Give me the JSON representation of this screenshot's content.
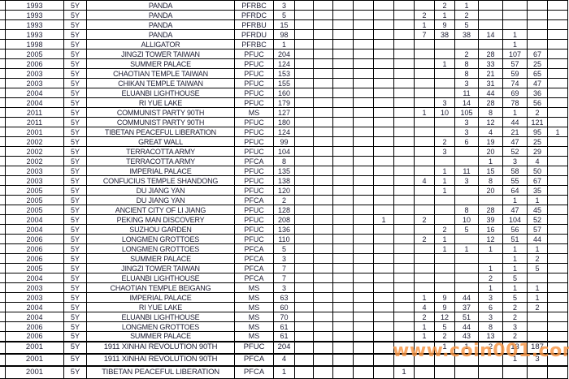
{
  "watermark": "www.coin001.com",
  "colors": {
    "background": "#ffffff",
    "grid_border": "#000000",
    "text": "#1d1d33",
    "watermark": "#f79443"
  },
  "table": {
    "description_visible_columns": [
      "year",
      "denomination",
      "subject_name",
      "finish_code",
      "total_count",
      "13 unlabeled count columns (header cut off above screenshot)"
    ],
    "rows": [
      {
        "year": "1993",
        "denom": "5Y",
        "name": "PANDA",
        "code": "PFRBC",
        "total": "3",
        "grades": [
          "",
          "",
          "",
          "",
          "",
          "",
          "",
          "2",
          "1",
          "",
          "",
          "",
          ""
        ]
      },
      {
        "year": "1993",
        "denom": "5Y",
        "name": "PANDA",
        "code": "PFRDC",
        "total": "5",
        "grades": [
          "",
          "",
          "",
          "",
          "",
          "",
          "2",
          "1",
          "2",
          "",
          "",
          "",
          ""
        ]
      },
      {
        "year": "1993",
        "denom": "5Y",
        "name": "PANDA",
        "code": "PFRBU",
        "total": "15",
        "grades": [
          "",
          "",
          "",
          "",
          "",
          "",
          "1",
          "9",
          "5",
          "",
          "",
          "",
          ""
        ]
      },
      {
        "year": "1993",
        "denom": "5Y",
        "name": "PANDA",
        "code": "PFRDU",
        "total": "98",
        "grades": [
          "",
          "",
          "",
          "",
          "",
          "",
          "7",
          "38",
          "38",
          "14",
          "1",
          "",
          ""
        ]
      },
      {
        "year": "1998",
        "denom": "5Y",
        "name": "ALLIGATOR",
        "code": "PFRBC",
        "total": "1",
        "grades": [
          "",
          "",
          "",
          "",
          "",
          "",
          "",
          "",
          "",
          "",
          "1",
          "",
          ""
        ]
      },
      {
        "year": "2005",
        "denom": "5Y",
        "name": "JINGZI TOWER TAIWAN",
        "code": "PFUC",
        "total": "204",
        "grades": [
          "",
          "",
          "",
          "",
          "",
          "",
          "",
          "",
          "2",
          "28",
          "107",
          "67",
          ""
        ]
      },
      {
        "year": "2006",
        "denom": "5Y",
        "name": "SUMMER PALACE",
        "code": "PFUC",
        "total": "124",
        "grades": [
          "",
          "",
          "",
          "",
          "",
          "",
          "",
          "1",
          "8",
          "33",
          "57",
          "25",
          ""
        ]
      },
      {
        "year": "2003",
        "denom": "5Y",
        "name": "CHAOTIAN TEMPLE TAIWAN",
        "code": "PFUC",
        "total": "153",
        "grades": [
          "",
          "",
          "",
          "",
          "",
          "",
          "",
          "",
          "8",
          "21",
          "59",
          "65",
          ""
        ]
      },
      {
        "year": "2003",
        "denom": "5Y",
        "name": "CHIKAN TEMPLE TAIWAN",
        "code": "PFUC",
        "total": "155",
        "grades": [
          "",
          "",
          "",
          "",
          "",
          "",
          "",
          "",
          "3",
          "31",
          "74",
          "47",
          ""
        ]
      },
      {
        "year": "2004",
        "denom": "5Y",
        "name": "ELUANBI LIGHTHOUSE",
        "code": "PFUC",
        "total": "160",
        "grades": [
          "",
          "",
          "",
          "",
          "",
          "",
          "",
          "",
          "11",
          "44",
          "69",
          "36",
          ""
        ]
      },
      {
        "year": "2004",
        "denom": "5Y",
        "name": "RI YUE LAKE",
        "code": "PFUC",
        "total": "179",
        "grades": [
          "",
          "",
          "",
          "",
          "",
          "",
          "",
          "3",
          "14",
          "28",
          "78",
          "56",
          ""
        ]
      },
      {
        "year": "2011",
        "denom": "5Y",
        "name": "COMMUNIST PARTY 90TH",
        "code": "MS",
        "total": "127",
        "grades": [
          "",
          "",
          "",
          "",
          "",
          "",
          "1",
          "10",
          "105",
          "8",
          "1",
          "2",
          ""
        ]
      },
      {
        "year": "2011",
        "denom": "5Y",
        "name": "COMMUNIST PARTY 90TH",
        "code": "PFUC",
        "total": "180",
        "grades": [
          "",
          "",
          "",
          "",
          "",
          "",
          "",
          "",
          "3",
          "12",
          "44",
          "121",
          ""
        ]
      },
      {
        "year": "2001",
        "denom": "5Y",
        "name": "TIBETAN PEACEFUL LIBERATION",
        "code": "PFUC",
        "total": "124",
        "grades": [
          "",
          "",
          "",
          "",
          "",
          "",
          "",
          "",
          "3",
          "4",
          "21",
          "95",
          "1"
        ]
      },
      {
        "year": "2002",
        "denom": "5Y",
        "name": "GREAT WALL",
        "code": "PFUC",
        "total": "99",
        "grades": [
          "",
          "",
          "",
          "",
          "",
          "",
          "",
          "2",
          "6",
          "19",
          "47",
          "25",
          ""
        ]
      },
      {
        "year": "2002",
        "denom": "5Y",
        "name": "TERRACOTTA ARMY",
        "code": "PFUC",
        "total": "104",
        "grades": [
          "",
          "",
          "",
          "",
          "",
          "",
          "",
          "3",
          "",
          "20",
          "52",
          "29",
          ""
        ]
      },
      {
        "year": "2002",
        "denom": "5Y",
        "name": "TERRACOTTA ARMY",
        "code": "PFCA",
        "total": "8",
        "grades": [
          "",
          "",
          "",
          "",
          "",
          "",
          "",
          "",
          "",
          "1",
          "3",
          "4",
          ""
        ]
      },
      {
        "year": "2003",
        "denom": "5Y",
        "name": "IMPERIAL PALACE",
        "code": "PFUC",
        "total": "135",
        "grades": [
          "",
          "",
          "",
          "",
          "",
          "",
          "",
          "1",
          "11",
          "15",
          "58",
          "50",
          ""
        ]
      },
      {
        "year": "2003",
        "denom": "5Y",
        "name": "CONFUCIUS TEMPLE SHANDONG",
        "code": "PFUC",
        "total": "138",
        "grades": [
          "",
          "",
          "",
          "",
          "",
          "",
          "4",
          "1",
          "3",
          "8",
          "55",
          "67",
          ""
        ]
      },
      {
        "year": "2005",
        "denom": "5Y",
        "name": "DU JIANG YAN",
        "code": "PFUC",
        "total": "120",
        "grades": [
          "",
          "",
          "",
          "",
          "",
          "",
          "",
          "1",
          "",
          "20",
          "64",
          "35",
          ""
        ]
      },
      {
        "year": "2005",
        "denom": "5Y",
        "name": "DU JIANG YAN",
        "code": "PFCA",
        "total": "2",
        "grades": [
          "",
          "",
          "",
          "",
          "",
          "",
          "",
          "",
          "",
          "",
          "1",
          "1",
          ""
        ]
      },
      {
        "year": "2005",
        "denom": "5Y",
        "name": "ANCIENT CITY OF LI JIANG",
        "code": "PFUC",
        "total": "128",
        "grades": [
          "",
          "",
          "",
          "",
          "",
          "",
          "",
          "",
          "8",
          "28",
          "47",
          "45",
          ""
        ]
      },
      {
        "year": "2004",
        "denom": "5Y",
        "name": "PEKING MAN DISCOVERY",
        "code": "PFUC",
        "total": "208",
        "grades": [
          "",
          "",
          "",
          "",
          "1",
          "",
          "2",
          "",
          "10",
          "39",
          "104",
          "52",
          ""
        ]
      },
      {
        "year": "2004",
        "denom": "5Y",
        "name": "SUZHOU GARDEN",
        "code": "PFUC",
        "total": "136",
        "grades": [
          "",
          "",
          "",
          "",
          "",
          "",
          "",
          "2",
          "5",
          "16",
          "56",
          "57",
          ""
        ]
      },
      {
        "year": "2006",
        "denom": "5Y",
        "name": "LONGMEN GROTTOES",
        "code": "PFUC",
        "total": "110",
        "grades": [
          "",
          "",
          "",
          "",
          "",
          "",
          "2",
          "1",
          "",
          "12",
          "51",
          "44",
          ""
        ]
      },
      {
        "year": "2006",
        "denom": "5Y",
        "name": "LONGMEN GROTTOES",
        "code": "PFCA",
        "total": "5",
        "grades": [
          "",
          "",
          "",
          "",
          "",
          "",
          "",
          "1",
          "1",
          "1",
          "1",
          "1",
          ""
        ]
      },
      {
        "year": "2006",
        "denom": "5Y",
        "name": "SUMMER PALACE",
        "code": "PFCA",
        "total": "3",
        "grades": [
          "",
          "",
          "",
          "",
          "",
          "",
          "",
          "",
          "",
          "",
          "1",
          "2",
          ""
        ]
      },
      {
        "year": "2005",
        "denom": "5Y",
        "name": "JINGZI TOWER TAIWAN",
        "code": "PFCA",
        "total": "7",
        "grades": [
          "",
          "",
          "",
          "",
          "",
          "",
          "",
          "",
          "",
          "1",
          "1",
          "5",
          ""
        ]
      },
      {
        "year": "2004",
        "denom": "5Y",
        "name": "ELUANBI LIGHTHOUSE",
        "code": "PFCA",
        "total": "7",
        "grades": [
          "",
          "",
          "",
          "",
          "",
          "",
          "",
          "",
          "",
          "2",
          "5",
          "",
          ""
        ]
      },
      {
        "year": "2003",
        "denom": "5Y",
        "name": "CHAOTIAN TEMPLE BEIGANG",
        "code": "MS",
        "total": "3",
        "grades": [
          "",
          "",
          "",
          "",
          "",
          "",
          "",
          "",
          "",
          "1",
          "1",
          "1",
          ""
        ]
      },
      {
        "year": "2003",
        "denom": "5Y",
        "name": "IMPERIAL PALACE",
        "code": "MS",
        "total": "63",
        "grades": [
          "",
          "",
          "",
          "",
          "",
          "",
          "1",
          "9",
          "44",
          "3",
          "5",
          "1",
          ""
        ]
      },
      {
        "year": "2004",
        "denom": "5Y",
        "name": "RI YUE LAKE",
        "code": "MS",
        "total": "60",
        "grades": [
          "",
          "",
          "",
          "",
          "",
          "",
          "4",
          "9",
          "37",
          "6",
          "2",
          "2",
          ""
        ]
      },
      {
        "year": "2004",
        "denom": "5Y",
        "name": "ELUANBI LIGHTHOUSE",
        "code": "MS",
        "total": "70",
        "grades": [
          "",
          "",
          "",
          "",
          "",
          "",
          "2",
          "12",
          "51",
          "3",
          "2",
          "",
          ""
        ]
      },
      {
        "year": "2006",
        "denom": "5Y",
        "name": "LONGMEN GROTTOES",
        "code": "MS",
        "total": "61",
        "grades": [
          "",
          "",
          "",
          "",
          "",
          "",
          "1",
          "5",
          "44",
          "8",
          "3",
          "",
          ""
        ]
      },
      {
        "year": "2006",
        "denom": "5Y",
        "name": "SUMMER PALACE",
        "code": "MS",
        "total": "61",
        "grades": [
          "",
          "",
          "",
          "",
          "",
          "",
          "1",
          "2",
          "43",
          "13",
          "2",
          "",
          ""
        ]
      },
      {
        "year": "2001",
        "denom": "5Y",
        "name": "1911 XINHAI REVOLUTION 90TH",
        "code": "PFUC",
        "total": "204",
        "grades": [
          "",
          "",
          "",
          "",
          "",
          "",
          "",
          "1",
          "1",
          "2",
          "13",
          "187",
          ""
        ]
      },
      {
        "year": "2001",
        "denom": "5Y",
        "name": "1911 XINHAI REVOLUTION 90TH",
        "code": "PFCA",
        "total": "4",
        "grades": [
          "",
          "",
          "",
          "",
          "",
          "",
          "",
          "",
          "",
          "",
          "1",
          "3",
          ""
        ]
      },
      {
        "year": "2001",
        "denom": "5Y",
        "name": "TIBETAN PEACEFUL LIBERATION",
        "code": "PFCA",
        "total": "1",
        "grades": [
          "",
          "",
          "",
          "",
          "",
          "1",
          "",
          "",
          "",
          "",
          "",
          "",
          ""
        ]
      }
    ]
  }
}
